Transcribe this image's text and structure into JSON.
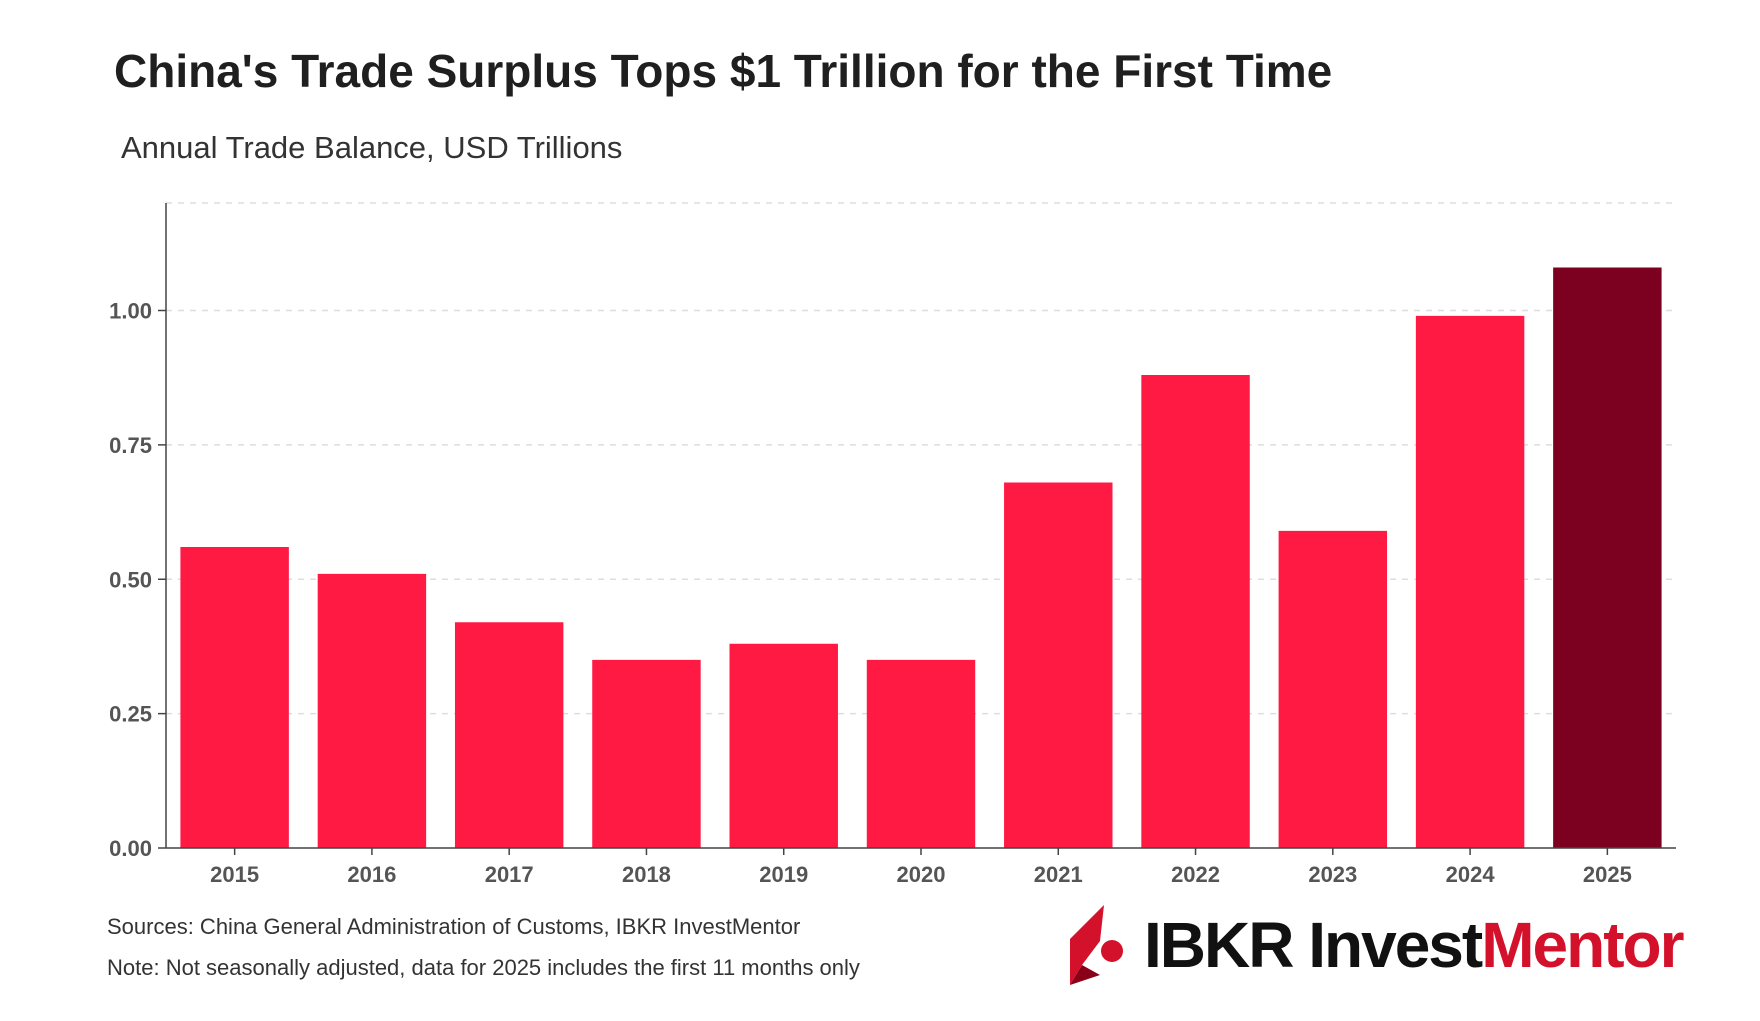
{
  "chart_data": {
    "type": "bar",
    "title": "China's Trade Surplus Tops $1 Trillion for the First Time",
    "subtitle": "Annual Trade Balance, USD Trillions",
    "xlabel": "",
    "ylabel": "",
    "categories": [
      "2015",
      "2016",
      "2017",
      "2018",
      "2019",
      "2020",
      "2021",
      "2022",
      "2023",
      "2024",
      "2025"
    ],
    "values": [
      0.56,
      0.51,
      0.42,
      0.35,
      0.38,
      0.35,
      0.68,
      0.88,
      0.59,
      0.99,
      1.08
    ],
    "highlight_category": "2025",
    "ylim": [
      0,
      1.2
    ],
    "yticks": [
      "0.00",
      "0.25",
      "0.50",
      "0.75",
      "1.00"
    ],
    "ytick_values": [
      0,
      0.25,
      0.5,
      0.75,
      1.0
    ],
    "grid": true,
    "legend": "none",
    "colors": {
      "bar": "#ff1a44",
      "highlight": "#7c0020",
      "grid": "#dddddd",
      "axis": "#444444",
      "tick_text": "#555555"
    }
  },
  "footer": {
    "sources": "Sources: China General Administration of Customs, IBKR InvestMentor",
    "note": "Note: Not seasonally adjusted, data for 2025 includes the first 11 months only"
  },
  "brand": {
    "name_part1": "IBKR Invest",
    "name_part2": "Mentor",
    "icon": "ibkr-logo-icon",
    "colors": {
      "dark": "#111111",
      "red": "#d4112a"
    }
  }
}
